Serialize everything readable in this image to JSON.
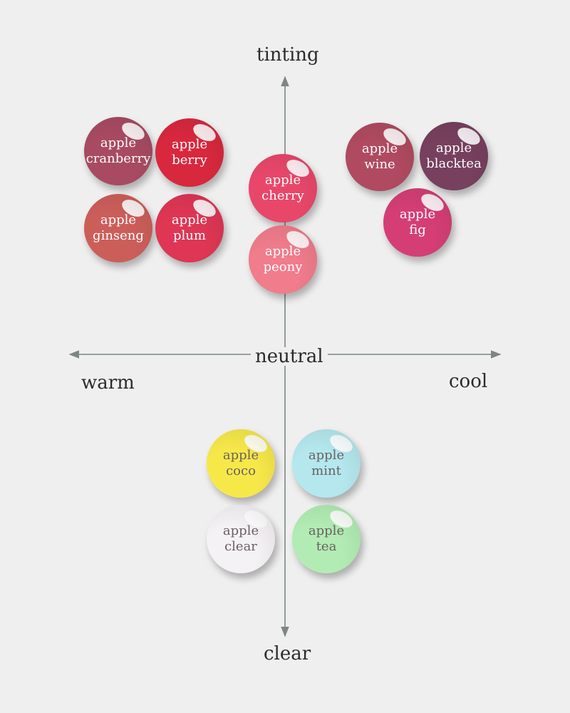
{
  "axes": {
    "top": "tinting",
    "bottom": "clear",
    "left": "warm",
    "right": "cool",
    "center": "neutral"
  },
  "swatches": [
    {
      "id": "cranberry",
      "line1": "apple",
      "line2": "cranberry",
      "color": "#a84a62",
      "tone": "dark"
    },
    {
      "id": "berry",
      "line1": "apple",
      "line2": "berry",
      "color": "#d8283e",
      "tone": "dark"
    },
    {
      "id": "ginseng",
      "line1": "apple",
      "line2": "ginseng",
      "color": "#cc5e5a",
      "tone": "dark"
    },
    {
      "id": "plum",
      "line1": "apple",
      "line2": "plum",
      "color": "#de3654",
      "tone": "dark"
    },
    {
      "id": "cherry",
      "line1": "apple",
      "line2": "cherry",
      "color": "#e8476a",
      "tone": "dark"
    },
    {
      "id": "peony",
      "line1": "apple",
      "line2": "peony",
      "color": "#f07c8c",
      "tone": "dark"
    },
    {
      "id": "wine",
      "line1": "apple",
      "line2": "wine",
      "color": "#b04a60",
      "tone": "dark"
    },
    {
      "id": "blacktea",
      "line1": "apple",
      "line2": "blacktea",
      "color": "#77405e",
      "tone": "dark"
    },
    {
      "id": "fig",
      "line1": "apple",
      "line2": "fig",
      "color": "#d43e74",
      "tone": "dark"
    },
    {
      "id": "coco",
      "line1": "apple",
      "line2": "coco",
      "color": "#f7e84a",
      "tone": "light"
    },
    {
      "id": "mint",
      "line1": "apple",
      "line2": "mint",
      "color": "#b4e8ee",
      "tone": "light"
    },
    {
      "id": "clear",
      "line1": "apple",
      "line2": "clear",
      "color": "#f5f2f6",
      "tone": "light"
    },
    {
      "id": "tea",
      "line1": "apple",
      "line2": "tea",
      "color": "#b2ecb4",
      "tone": "light"
    }
  ]
}
